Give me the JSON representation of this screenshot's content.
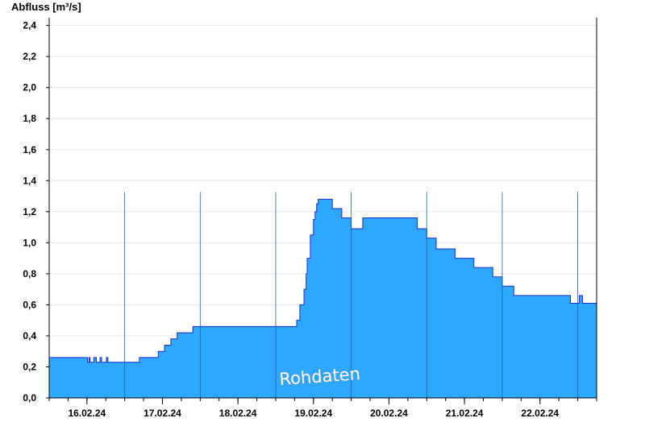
{
  "chart_data": {
    "type": "area",
    "title": "",
    "ylabel": "Abfluss [m³/s]",
    "xlabel": "",
    "ylim": [
      0,
      2.45
    ],
    "yticks": [
      0,
      0.2,
      0.4,
      0.6,
      0.8,
      1.0,
      1.2,
      1.4,
      1.6,
      1.8,
      2.0,
      2.2,
      2.4
    ],
    "ytick_labels": [
      "0,0",
      "0,2",
      "0,4",
      "0,6",
      "0,8",
      "1,0",
      "1,2",
      "1,4",
      "1,6",
      "1,8",
      "2,0",
      "2,2",
      "2,4"
    ],
    "xlim": [
      "2024-02-15T12:00",
      "2024-02-22T18:00"
    ],
    "xtick_labels": [
      "16.02.24",
      "17.02.24",
      "18.02.24",
      "19.02.24",
      "20.02.24",
      "21.02.24",
      "22.02.24"
    ],
    "xticks": [
      "2024-02-16T00:00",
      "2024-02-17T00:00",
      "2024-02-18T00:00",
      "2024-02-19T00:00",
      "2024-02-20T00:00",
      "2024-02-21T00:00",
      "2024-02-22T00:00"
    ],
    "grid": true,
    "fill_color": "#2ea8ff",
    "line_color": "#1a2ccc",
    "annotation": "Rohdaten",
    "series": [
      {
        "x": [
          "2024-02-15T12:00",
          "2024-02-16T00:00",
          "2024-02-16T00:10",
          "2024-02-16T00:40",
          "2024-02-16T01:00",
          "2024-02-16T02:00",
          "2024-02-16T02:10",
          "2024-02-16T03:00",
          "2024-02-16T04:00",
          "2024-02-16T04:10",
          "2024-02-16T04:40",
          "2024-02-16T05:00",
          "2024-02-16T06:00",
          "2024-02-16T06:10",
          "2024-02-16T06:40",
          "2024-02-16T07:00",
          "2024-02-16T15:00",
          "2024-02-16T16:00",
          "2024-02-16T16:40",
          "2024-02-16T22:00",
          "2024-02-16T22:40",
          "2024-02-17T00:00",
          "2024-02-17T00:40",
          "2024-02-17T02:00",
          "2024-02-17T02:40",
          "2024-02-17T04:00",
          "2024-02-17T04:40",
          "2024-02-17T06:40",
          "2024-02-17T09:00",
          "2024-02-17T09:40",
          "2024-02-18T00:00",
          "2024-02-18T12:00",
          "2024-02-18T18:00",
          "2024-02-18T18:40",
          "2024-02-18T19:40",
          "2024-02-18T21:00",
          "2024-02-18T21:40",
          "2024-02-18T22:00",
          "2024-02-18T23:00",
          "2024-02-19T00:00",
          "2024-02-19T00:30",
          "2024-02-19T01:00",
          "2024-02-19T01:30",
          "2024-02-19T02:00",
          "2024-02-19T02:30",
          "2024-02-19T03:00",
          "2024-02-19T05:00",
          "2024-02-19T06:00",
          "2024-02-19T06:40",
          "2024-02-19T09:00",
          "2024-02-19T09:40",
          "2024-02-19T12:00",
          "2024-02-19T15:00",
          "2024-02-19T15:40",
          "2024-02-20T00:00",
          "2024-02-20T06:00",
          "2024-02-20T06:40",
          "2024-02-20T09:00",
          "2024-02-20T09:40",
          "2024-02-20T12:00",
          "2024-02-20T12:40",
          "2024-02-20T15:00",
          "2024-02-20T15:40",
          "2024-02-20T21:00",
          "2024-02-20T21:40",
          "2024-02-21T03:00",
          "2024-02-21T03:40",
          "2024-02-21T09:00",
          "2024-02-21T09:40",
          "2024-02-21T12:00",
          "2024-02-21T15:00",
          "2024-02-21T15:40",
          "2024-02-22T00:00",
          "2024-02-22T09:00",
          "2024-02-22T09:40",
          "2024-02-22T12:00",
          "2024-02-22T12:30",
          "2024-02-22T13:30",
          "2024-02-22T14:00",
          "2024-02-22T18:00"
        ],
        "values": [
          0.26,
          0.26,
          0.23,
          0.26,
          0.23,
          0.23,
          0.26,
          0.23,
          0.23,
          0.26,
          0.23,
          0.23,
          0.23,
          0.26,
          0.23,
          0.23,
          0.23,
          0.23,
          0.26,
          0.26,
          0.3,
          0.3,
          0.34,
          0.34,
          0.38,
          0.38,
          0.42,
          0.42,
          0.42,
          0.46,
          0.46,
          0.46,
          0.46,
          0.5,
          0.6,
          0.7,
          0.8,
          0.9,
          1.05,
          1.15,
          1.2,
          1.25,
          1.28,
          1.28,
          1.28,
          1.28,
          1.28,
          1.22,
          1.22,
          1.16,
          1.16,
          1.09,
          1.09,
          1.16,
          1.16,
          1.16,
          1.16,
          1.09,
          1.09,
          1.03,
          1.03,
          0.96,
          0.96,
          0.9,
          0.9,
          0.84,
          0.84,
          0.78,
          0.78,
          0.72,
          0.72,
          0.66,
          0.66,
          0.66,
          0.61,
          0.61,
          0.66,
          0.61,
          0.61,
          0.61
        ]
      }
    ]
  }
}
